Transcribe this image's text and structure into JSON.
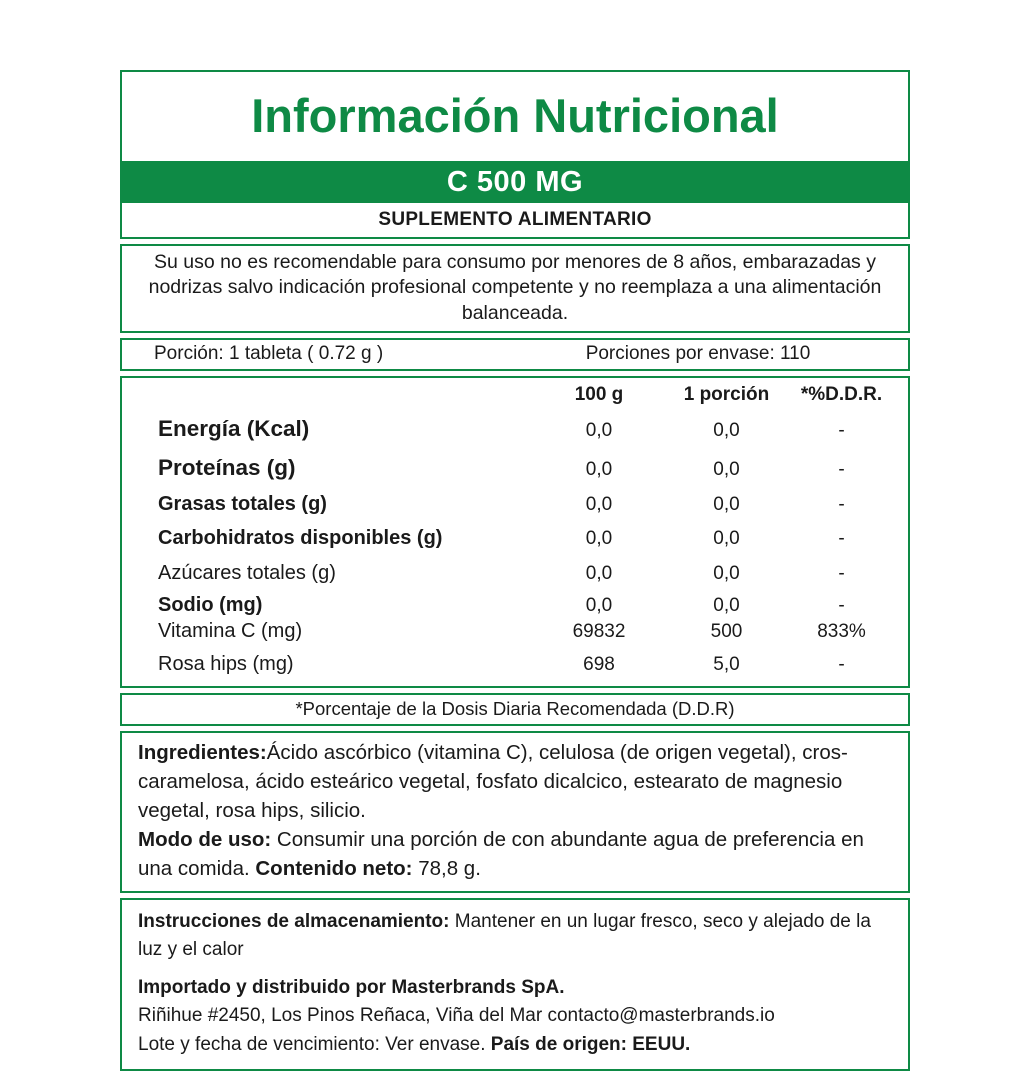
{
  "colors": {
    "green": "#0e8a45",
    "text": "#1a1a1a"
  },
  "header": {
    "title": "Información Nutricional",
    "product": "C 500 MG",
    "subtitle": "SUPLEMENTO ALIMENTARIO"
  },
  "warning": "Su uso no es recomendable para consumo por menores de 8 años, embarazadas y nodrizas salvo indicación profesional competente y no reemplaza a una alimentación balanceada.",
  "serving": {
    "portion": "Porción:  1 tableta ( 0.72 g )",
    "per_container": "Porciones por envase: 110"
  },
  "table": {
    "headers": {
      "per_100g": "100 g",
      "per_portion": "1 porción",
      "ddr": "*%D.D.R."
    },
    "rows": [
      {
        "label": "Energía (Kcal)",
        "per_100g": "0,0",
        "per_portion": "0,0",
        "ddr": "-"
      },
      {
        "label": "Proteínas (g)",
        "per_100g": "0,0",
        "per_portion": "0,0",
        "ddr": "-"
      },
      {
        "label": "Grasas totales (g)",
        "per_100g": "0,0",
        "per_portion": "0,0",
        "ddr": "-"
      },
      {
        "label": "Carbohidratos disponibles (g)",
        "per_100g": "0,0",
        "per_portion": "0,0",
        "ddr": "-"
      },
      {
        "label": "Azúcares totales (g)",
        "per_100g": "0,0",
        "per_portion": "0,0",
        "ddr": "-"
      },
      {
        "label": "Sodio (mg)",
        "per_100g": "0,0",
        "per_portion": "0,0",
        "ddr": "-"
      },
      {
        "label": "Vitamina C (mg)",
        "per_100g": "69832",
        "per_portion": "500",
        "ddr": "833%"
      },
      {
        "label": "Rosa hips (mg)",
        "per_100g": "698",
        "per_portion": "5,0",
        "ddr": "-"
      }
    ],
    "footnote": "*Porcentaje de la Dosis Diaria Recomendada (D.D.R)"
  },
  "ingredients": {
    "label": "Ingredientes:",
    "text": "Ácido ascórbico (vitamina C), celulosa (de origen vegetal), cros-caramelosa, ácido esteárico vegetal, fosfato dicalcico, estearato de magnesio vegetal, rosa hips, silicio.",
    "usage_label": "Modo de uso:",
    "usage_text": " Consumir una porción  de con abundante agua de preferencia en una comida.  ",
    "net_label": "Contenido neto:",
    "net_value": " 78,8 g."
  },
  "footer": {
    "storage_label": "Instrucciones de almacenamiento:",
    "storage_text": "  Mantener en un lugar fresco, seco y alejado de la luz y el calor",
    "importer": "Importado y distribuido por Masterbrands SpA.",
    "address": "Riñihue #2450, Los Pinos Reñaca, Viña del Mar contacto@masterbrands.io",
    "lot": "Lote y fecha de vencimiento: Ver envase.  ",
    "origin": "País de origen: EEUU."
  }
}
